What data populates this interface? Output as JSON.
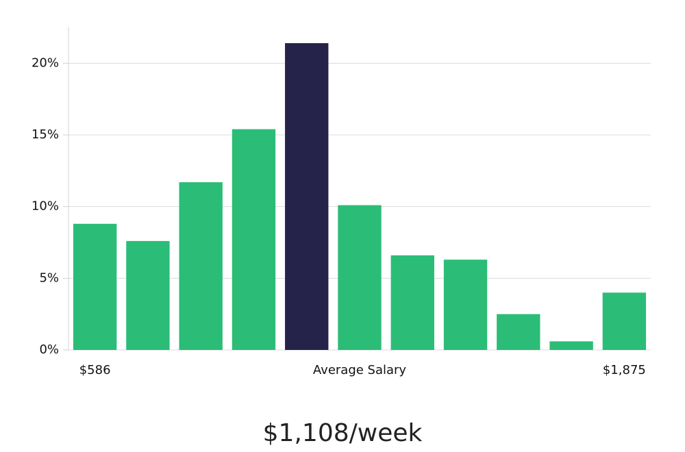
{
  "chart_data": {
    "type": "bar",
    "categories": [
      "$586",
      null,
      null,
      null,
      null,
      "Average Salary",
      null,
      null,
      null,
      null,
      "$1,875"
    ],
    "values": [
      8.8,
      7.6,
      11.7,
      15.4,
      21.4,
      10.1,
      6.6,
      6.3,
      2.5,
      0.6,
      4.0
    ],
    "colors": [
      "#2bbd77",
      "#2bbd77",
      "#2bbd77",
      "#2bbd77",
      "#26234a",
      "#2bbd77",
      "#2bbd77",
      "#2bbd77",
      "#2bbd77",
      "#2bbd77",
      "#2bbd77"
    ],
    "ylim": [
      0,
      22.5
    ],
    "yticks": [
      {
        "value": 0,
        "label": "0%"
      },
      {
        "value": 5,
        "label": "5%"
      },
      {
        "value": 10,
        "label": "10%"
      },
      {
        "value": 15,
        "label": "15%"
      },
      {
        "value": 20,
        "label": "20%"
      }
    ],
    "grid": true,
    "caption": "$1,108/week"
  }
}
